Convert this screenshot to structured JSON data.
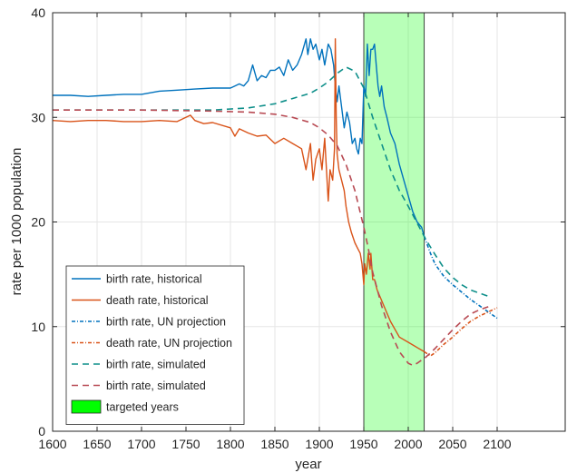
{
  "chart_data": {
    "type": "line",
    "xlabel": "year",
    "ylabel": "rate per 1000 population",
    "xlim": [
      1600,
      2200
    ],
    "ylim": [
      0,
      40
    ],
    "xticks": [
      1600,
      1650,
      1700,
      1750,
      1800,
      1850,
      1900,
      1950,
      2000,
      2050,
      2100
    ],
    "yticks": [
      0,
      10,
      20,
      30,
      40
    ],
    "grid": true,
    "legend_position": "bottom-left",
    "highlight": {
      "label": "targeted years",
      "x_range": [
        1950,
        2018
      ],
      "color": "#00ff00"
    },
    "series": [
      {
        "name": "birth rate, historical",
        "style": "solid",
        "color": "#0072bd",
        "x": [
          1600,
          1620,
          1640,
          1660,
          1680,
          1700,
          1720,
          1740,
          1760,
          1780,
          1800,
          1805,
          1810,
          1815,
          1820,
          1825,
          1830,
          1835,
          1840,
          1845,
          1850,
          1855,
          1860,
          1865,
          1870,
          1875,
          1880,
          1885,
          1887,
          1890,
          1893,
          1896,
          1900,
          1903,
          1906,
          1910,
          1913,
          1916,
          1918,
          1920,
          1922,
          1925,
          1928,
          1931,
          1934,
          1937,
          1940,
          1942,
          1944,
          1946,
          1948,
          1950,
          1952,
          1954,
          1956,
          1958,
          1960,
          1962,
          1964,
          1966,
          1968,
          1970,
          1973,
          1976,
          1980,
          1985,
          1990,
          1995,
          2000,
          2005,
          2010,
          2015,
          2018
        ],
        "y": [
          32.1,
          32.1,
          32.0,
          32.1,
          32.2,
          32.2,
          32.5,
          32.6,
          32.7,
          32.8,
          32.8,
          33.0,
          33.2,
          33.0,
          33.5,
          35.0,
          33.5,
          34.0,
          33.8,
          34.5,
          34.5,
          34.8,
          34.0,
          35.5,
          34.5,
          35.0,
          36.0,
          37.5,
          36.0,
          37.5,
          36.5,
          37.0,
          35.5,
          36.5,
          35.0,
          37.0,
          36.5,
          35.0,
          33.0,
          31.5,
          33.0,
          31.0,
          29.0,
          30.5,
          29.5,
          27.5,
          28.0,
          27.0,
          26.5,
          28.0,
          27.5,
          33.0,
          32.0,
          37.0,
          34.0,
          36.5,
          36.5,
          37.0,
          35.0,
          33.0,
          32.0,
          33.0,
          31.0,
          30.0,
          28.5,
          27.5,
          25.5,
          24.0,
          22.5,
          21.0,
          20.0,
          19.5,
          18.6
        ]
      },
      {
        "name": "death rate, historical",
        "style": "solid",
        "color": "#d95319",
        "x": [
          1600,
          1620,
          1640,
          1660,
          1680,
          1700,
          1720,
          1740,
          1755,
          1760,
          1770,
          1780,
          1800,
          1805,
          1810,
          1820,
          1830,
          1840,
          1850,
          1860,
          1870,
          1880,
          1885,
          1890,
          1893,
          1896,
          1900,
          1903,
          1906,
          1910,
          1912,
          1915,
          1917,
          1918,
          1919,
          1920,
          1922,
          1925,
          1928,
          1930,
          1933,
          1936,
          1940,
          1943,
          1946,
          1948,
          1950,
          1951,
          1953,
          1955,
          1957,
          1958,
          1960,
          1962,
          1965,
          1970,
          1975,
          1980,
          1990,
          2000,
          2010,
          2018
        ],
        "y": [
          29.7,
          29.6,
          29.7,
          29.7,
          29.6,
          29.6,
          29.7,
          29.6,
          30.2,
          29.7,
          29.4,
          29.5,
          29.0,
          28.2,
          28.9,
          28.5,
          28.2,
          28.3,
          27.5,
          28.0,
          27.5,
          27.0,
          25.0,
          27.5,
          24.0,
          26.0,
          27.0,
          25.0,
          28.0,
          22.0,
          25.0,
          24.0,
          27.0,
          37.5,
          30.0,
          26.5,
          25.0,
          24.0,
          23.0,
          21.5,
          20.0,
          19.0,
          18.0,
          17.5,
          17.0,
          16.0,
          14.0,
          16.0,
          15.0,
          17.0,
          15.5,
          17.0,
          14.5,
          14.5,
          13.5,
          12.5,
          11.5,
          10.5,
          9.0,
          8.5,
          8.0,
          7.6
        ]
      },
      {
        "name": "birth rate, UN projection",
        "style": "dashdot",
        "color": "#0072bd",
        "x": [
          2018,
          2025,
          2030,
          2040,
          2050,
          2060,
          2070,
          2080,
          2090,
          2100
        ],
        "y": [
          18.6,
          17.0,
          16.0,
          14.8,
          14.0,
          13.3,
          12.6,
          12.0,
          11.4,
          10.8
        ]
      },
      {
        "name": "death rate, UN projection",
        "style": "dashdot",
        "color": "#d95319",
        "x": [
          2018,
          2025,
          2030,
          2040,
          2050,
          2060,
          2070,
          2080,
          2090,
          2100
        ],
        "y": [
          7.6,
          7.2,
          7.5,
          8.3,
          9.0,
          9.8,
          10.5,
          11.0,
          11.4,
          11.8
        ]
      },
      {
        "name": "birth rate, simulated",
        "style": "dashed",
        "color": "#0e8f8a",
        "x": [
          1600,
          1700,
          1780,
          1820,
          1850,
          1870,
          1890,
          1900,
          1910,
          1920,
          1930,
          1940,
          1950,
          1960,
          1970,
          1980,
          1990,
          2000,
          2010,
          2020,
          2030,
          2040,
          2050,
          2060,
          2070,
          2080,
          2090
        ],
        "y": [
          30.7,
          30.7,
          30.7,
          30.9,
          31.3,
          31.8,
          32.3,
          32.8,
          33.4,
          34.2,
          34.8,
          34.4,
          32.8,
          30.0,
          27.5,
          25.0,
          23.0,
          21.5,
          19.9,
          18.3,
          16.9,
          15.6,
          14.7,
          14.0,
          13.5,
          13.2,
          12.9
        ]
      },
      {
        "name": "birth rate, simulated",
        "style": "dashed",
        "color": "#b84a53",
        "x": [
          1600,
          1700,
          1780,
          1820,
          1850,
          1870,
          1890,
          1900,
          1910,
          1920,
          1930,
          1940,
          1950,
          1955,
          1960,
          1970,
          1980,
          1990,
          2000,
          2005,
          2010,
          2020,
          2030,
          2040,
          2050,
          2060,
          2070,
          2080,
          2090
        ],
        "y": [
          30.7,
          30.7,
          30.6,
          30.5,
          30.3,
          30.0,
          29.5,
          29.0,
          28.3,
          27.3,
          25.5,
          23.0,
          19.5,
          17.5,
          15.2,
          12.0,
          9.5,
          7.6,
          6.5,
          6.3,
          6.5,
          7.1,
          7.9,
          8.8,
          9.7,
          10.5,
          11.2,
          11.6,
          11.9
        ]
      }
    ]
  }
}
